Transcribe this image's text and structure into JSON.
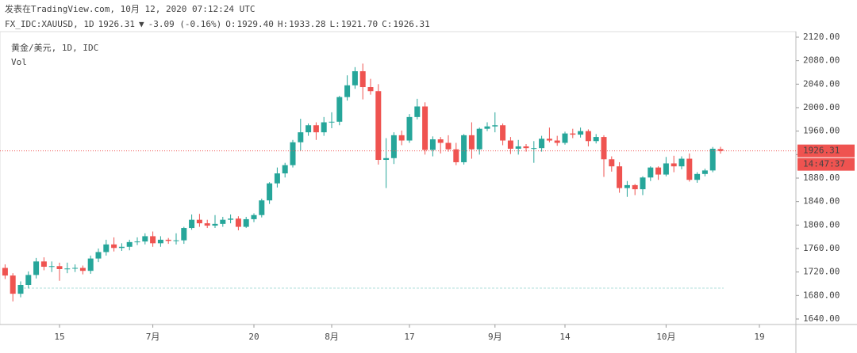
{
  "header": {
    "published": "发表在TradingView.com, 10月 12, 2020 07:12:24 UTC",
    "symbol": "FX_IDC:XAUUSD, 1D",
    "last": "1926.31",
    "arrow": "▼",
    "change": "-3.09 (-0.16%)",
    "ohlc": [
      {
        "label": "O:",
        "value": "1929.40"
      },
      {
        "label": "H:",
        "value": "1933.28"
      },
      {
        "label": "L:",
        "value": "1921.70"
      },
      {
        "label": "C:",
        "value": "1926.31"
      }
    ]
  },
  "chart_data": {
    "type": "candlestick",
    "title": "黄金/美元, 1D, IDC",
    "subtitle": "Vol",
    "up_color": "#26a69a",
    "down_color": "#ef5350",
    "categories": [
      null,
      null,
      null,
      null,
      null,
      null,
      null,
      "15",
      null,
      null,
      null,
      null,
      null,
      null,
      null,
      null,
      null,
      null,
      null,
      "7月",
      null,
      null,
      null,
      null,
      null,
      null,
      null,
      null,
      null,
      null,
      null,
      null,
      "20",
      null,
      null,
      null,
      null,
      null,
      null,
      null,
      null,
      null,
      "8月",
      null,
      null,
      null,
      null,
      null,
      null,
      null,
      null,
      null,
      "17",
      null,
      null,
      null,
      null,
      null,
      null,
      null,
      null,
      null,
      null,
      "9月",
      null,
      null,
      null,
      null,
      null,
      null,
      null,
      null,
      "14",
      null,
      null,
      null,
      null,
      null,
      null,
      null,
      null,
      null,
      null,
      null,
      null,
      "10月",
      null,
      null,
      null,
      null,
      null,
      null,
      null,
      null,
      null,
      null,
      null,
      "19"
    ],
    "open": [
      1727,
      1714,
      1683,
      1698,
      1715,
      1738,
      1729,
      1730,
      1725,
      1726,
      1727,
      1722,
      1743,
      1754,
      1767,
      1761,
      1763,
      1771,
      1772,
      1781,
      1769,
      1775,
      1773,
      1774,
      1795,
      1809,
      1803,
      1799,
      1802,
      1809,
      1811,
      1797,
      1810,
      1817,
      1842,
      1871,
      1888,
      1902,
      1941,
      1958,
      1970,
      1958,
      1975,
      1976,
      2018,
      2038,
      2062,
      2035,
      2028,
      1911,
      1914,
      1953,
      1944,
      1984,
      2002,
      1928,
      1946,
      1940,
      1929,
      1907,
      1953,
      1929,
      1964,
      1968,
      1970,
      1944,
      1930,
      1934,
      1931,
      1931,
      1947,
      1944,
      1940,
      1956,
      1954,
      1960,
      1943,
      1950,
      1912,
      1900,
      1863,
      1868,
      1861,
      1881,
      1898,
      1886,
      1905,
      1900,
      1913,
      1877,
      1887,
      1893,
      1929.4,
      null,
      null,
      null,
      null,
      null
    ],
    "high": [
      1733,
      1718,
      1704,
      1721,
      1744,
      1745,
      1738,
      1736,
      1736,
      1733,
      1731,
      1748,
      1760,
      1775,
      1779,
      1769,
      1775,
      1779,
      1786,
      1789,
      1781,
      1778,
      1786,
      1797,
      1818,
      1819,
      1809,
      1817,
      1814,
      1818,
      1815,
      1814,
      1820,
      1845,
      1873,
      1898,
      1906,
      1945,
      1981,
      1973,
      1975,
      1984,
      1992,
      2020,
      2055,
      2069,
      2075,
      2049,
      2040,
      1948,
      1958,
      1961,
      1989,
      2015,
      2009,
      1951,
      1950,
      1953,
      1940,
      1955,
      1975,
      1966,
      1975,
      1992,
      1973,
      1950,
      1945,
      1938,
      1943,
      1952,
      1966,
      1952,
      1959,
      1964,
      1966,
      1963,
      1955,
      1953,
      1917,
      1907,
      1875,
      1870,
      1883,
      1900,
      1900,
      1916,
      1918,
      1917,
      1922,
      1890,
      1896,
      1933,
      1933.28,
      null,
      null,
      null,
      null,
      null
    ],
    "low": [
      1708,
      1670,
      1677,
      1692,
      1709,
      1723,
      1720,
      1705,
      1718,
      1720,
      1716,
      1717,
      1737,
      1748,
      1755,
      1756,
      1757,
      1766,
      1767,
      1763,
      1763,
      1768,
      1767,
      1768,
      1792,
      1797,
      1795,
      1795,
      1797,
      1803,
      1791,
      1795,
      1805,
      1813,
      1836,
      1864,
      1881,
      1898,
      1927,
      1952,
      1945,
      1952,
      1965,
      1970,
      2012,
      2032,
      2014,
      2022,
      1903,
      1863,
      1904,
      1936,
      1940,
      1980,
      1920,
      1917,
      1922,
      1925,
      1902,
      1903,
      1913,
      1920,
      1960,
      1958,
      1936,
      1921,
      1920,
      1925,
      1906,
      1925,
      1941,
      1935,
      1937,
      1948,
      1949,
      1934,
      1939,
      1882,
      1891,
      1855,
      1848,
      1851,
      1851,
      1875,
      1877,
      1883,
      1890,
      1895,
      1874,
      1872,
      1883,
      1890,
      1921.7,
      null,
      null,
      null,
      null,
      null
    ],
    "close": [
      1714,
      1683,
      1698,
      1715,
      1738,
      1729,
      1730,
      1725,
      1726,
      1727,
      1722,
      1743,
      1754,
      1767,
      1761,
      1763,
      1771,
      1772,
      1781,
      1769,
      1775,
      1773,
      1774,
      1795,
      1809,
      1803,
      1799,
      1802,
      1809,
      1811,
      1797,
      1810,
      1817,
      1842,
      1871,
      1888,
      1902,
      1941,
      1958,
      1970,
      1958,
      1975,
      1976,
      2018,
      2038,
      2062,
      2035,
      2028,
      1911,
      1914,
      1953,
      1944,
      1984,
      2002,
      1928,
      1946,
      1940,
      1929,
      1907,
      1953,
      1929,
      1964,
      1968,
      1970,
      1944,
      1930,
      1934,
      1931,
      1931,
      1947,
      1944,
      1940,
      1956,
      1954,
      1960,
      1943,
      1950,
      1912,
      1900,
      1863,
      1868,
      1861,
      1881,
      1898,
      1886,
      1905,
      1900,
      1913,
      1877,
      1887,
      1893,
      1930,
      1926.31,
      null,
      null,
      null,
      null,
      null
    ],
    "ylim": [
      1630.6,
      2129.4
    ],
    "yticks": [
      {
        "value": 1640,
        "label": "1640.00"
      },
      {
        "value": 1680,
        "label": "1680.00"
      },
      {
        "value": 1720,
        "label": "1720.00"
      },
      {
        "value": 1760,
        "label": "1760.00"
      },
      {
        "value": 1800,
        "label": "1800.00"
      },
      {
        "value": 1840,
        "label": "1840.00"
      },
      {
        "value": 1880,
        "label": "1880.00"
      },
      {
        "value": 1920,
        "label": "1920.00"
      },
      {
        "value": 1960,
        "label": "1960.00"
      },
      {
        "value": 2000,
        "label": "2000.00"
      },
      {
        "value": 2040,
        "label": "2040.00"
      },
      {
        "value": 2080,
        "label": "2080.00"
      },
      {
        "value": 2120,
        "label": "2120.00"
      }
    ],
    "last_price_label": "1926.31",
    "countdown": "14:47:37"
  }
}
